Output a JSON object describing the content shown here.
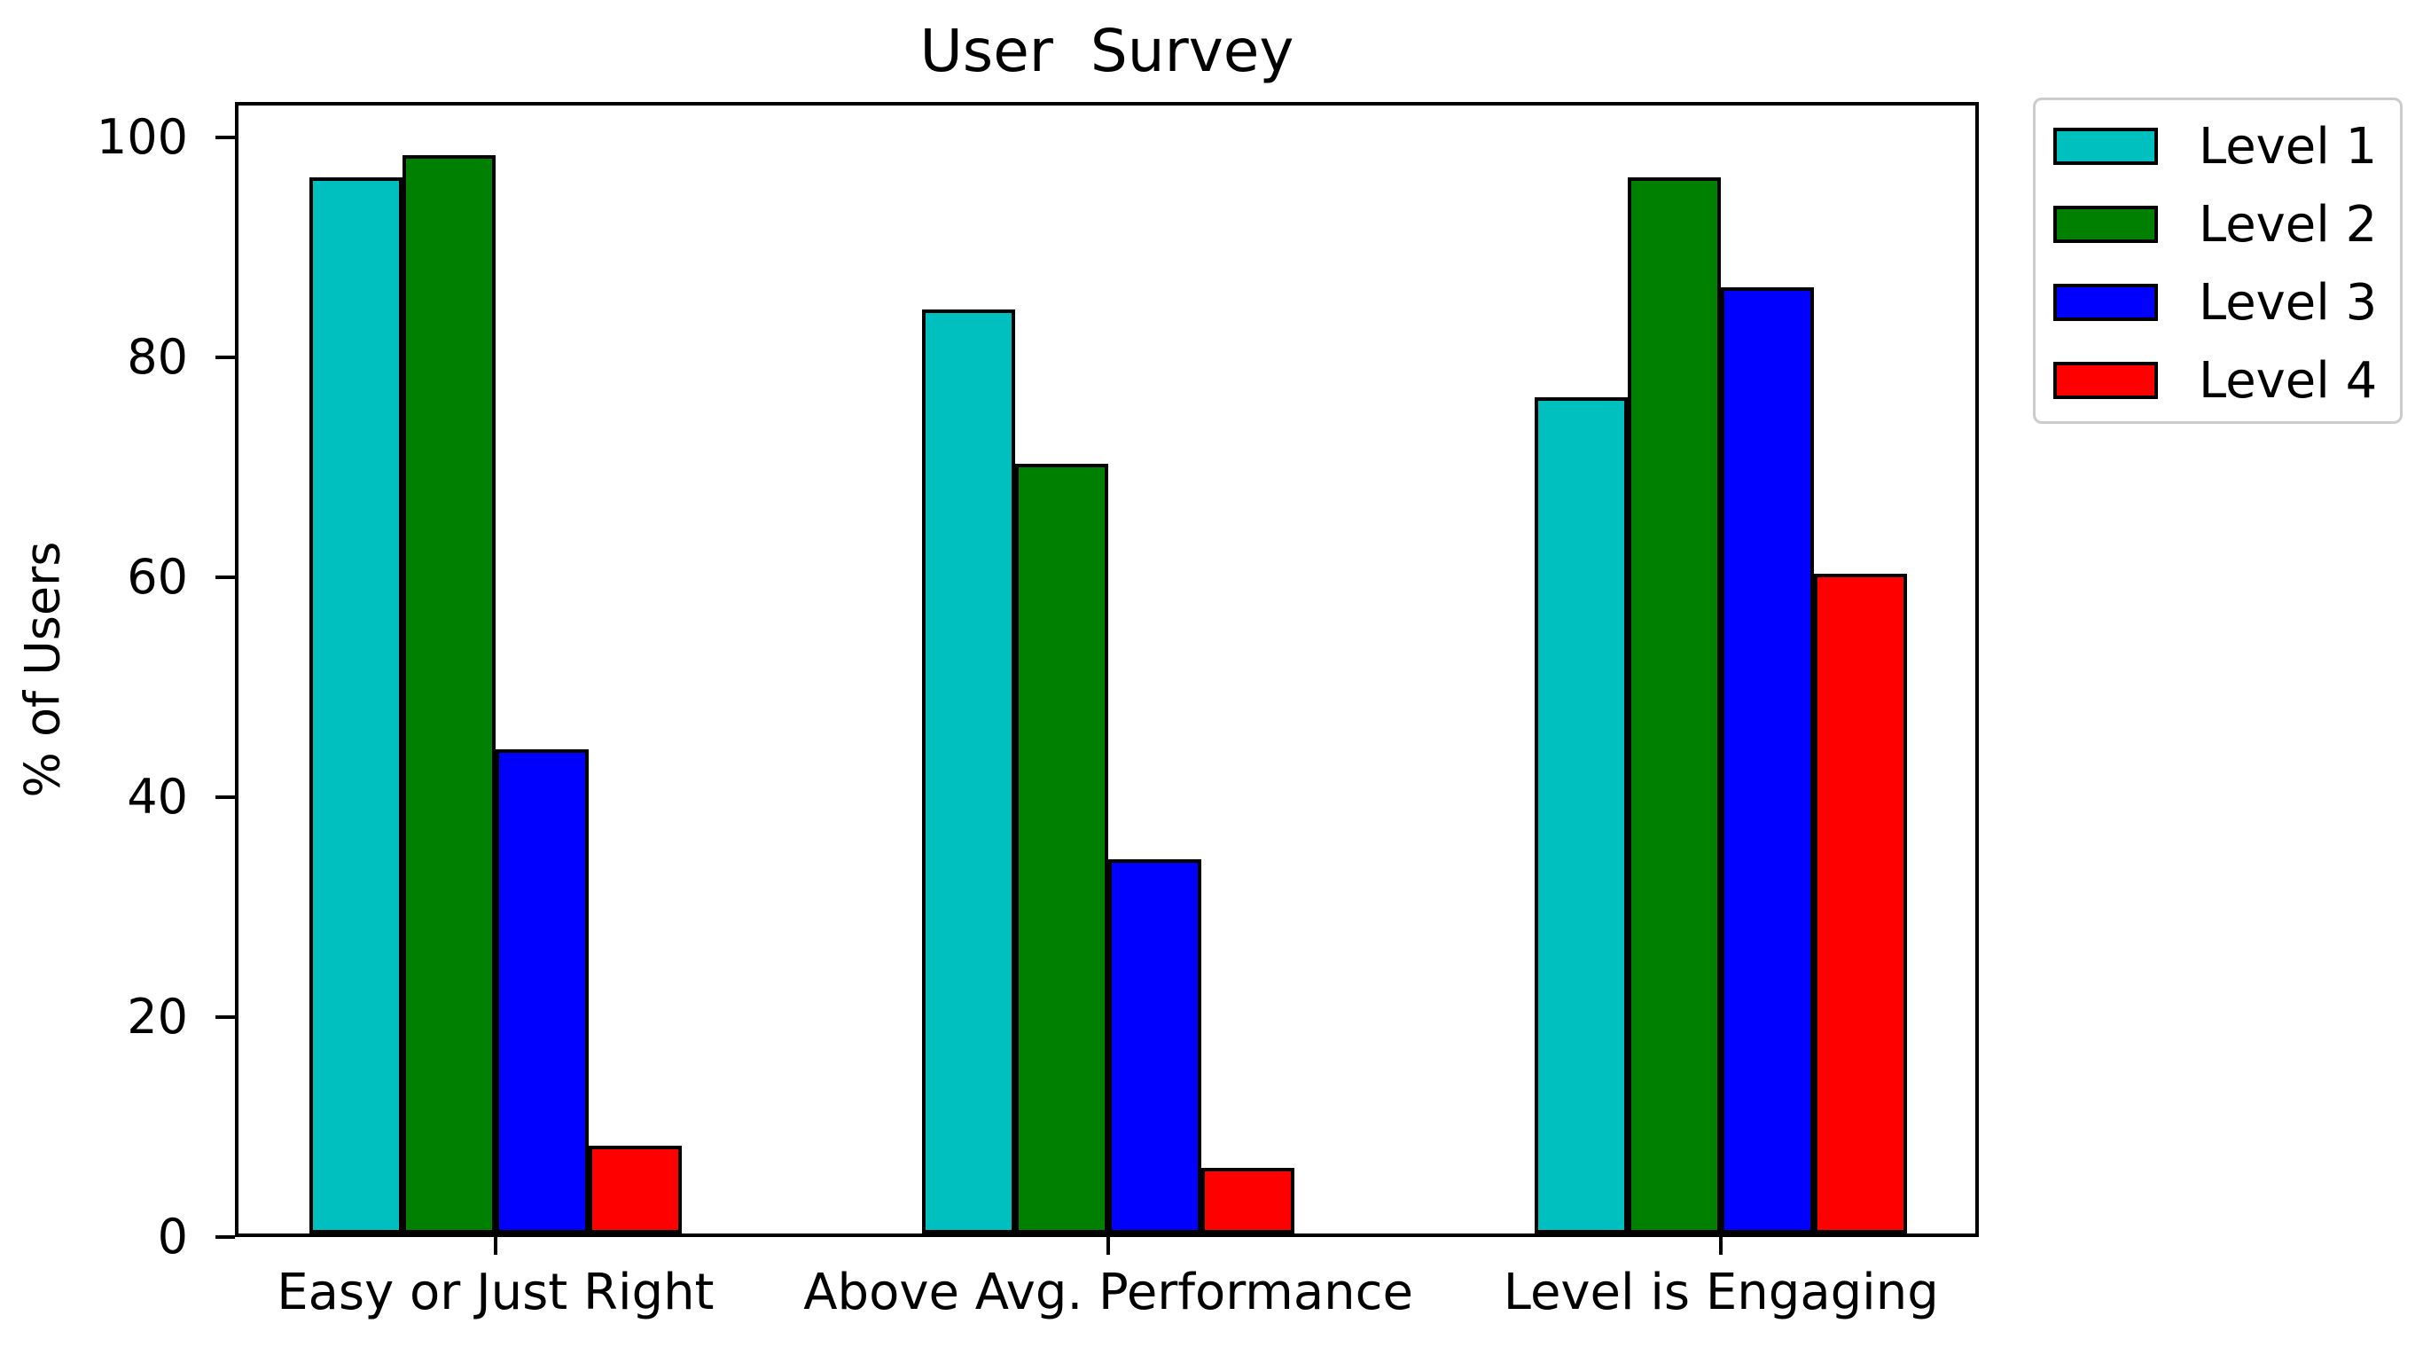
{
  "chart_data": {
    "type": "bar",
    "title": "User  Survey",
    "ylabel": "% of Users",
    "xlabel": "",
    "categories": [
      "Easy or Just Right",
      "Above Avg. Performance",
      "Level is Engaging"
    ],
    "series": [
      {
        "name": "Level 1",
        "color": "#00bfbf",
        "values": [
          96,
          84,
          76
        ]
      },
      {
        "name": "Level 2",
        "color": "#008000",
        "values": [
          98,
          70,
          96
        ]
      },
      {
        "name": "Level 3",
        "color": "#0000ff",
        "values": [
          44,
          34,
          86
        ]
      },
      {
        "name": "Level 4",
        "color": "#ff0000",
        "values": [
          8,
          6,
          60
        ]
      }
    ],
    "yticks": [
      0,
      20,
      40,
      60,
      80,
      100
    ],
    "ylim": [
      0,
      103.2
    ],
    "grid": false,
    "legend_position": "outside-upper-right",
    "bar_edge_color": "#000000",
    "axes_color": "#000000",
    "background_color": "#ffffff"
  }
}
